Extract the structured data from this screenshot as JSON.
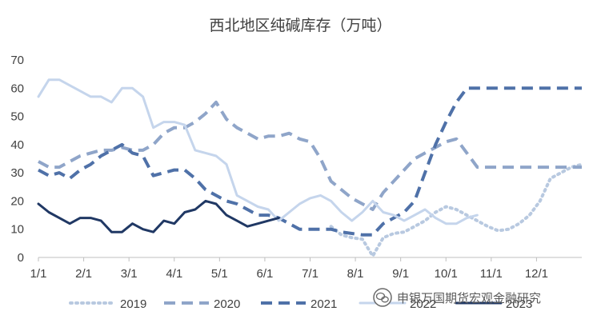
{
  "chart_data": {
    "type": "line",
    "title": "西北地区纯碱库存（万吨）",
    "ylim": [
      0,
      70
    ],
    "y_ticks": [
      0,
      10,
      20,
      30,
      40,
      50,
      60,
      70
    ],
    "x_ticks": [
      "1/1",
      "2/1",
      "3/1",
      "4/1",
      "5/1",
      "6/1",
      "7/1",
      "8/1",
      "9/1",
      "10/1",
      "11/1",
      "12/1"
    ],
    "xlim": [
      1,
      53
    ],
    "grid": false,
    "legend_position": "bottom",
    "series": [
      {
        "name": "2019",
        "color": "#b8c9e0",
        "style": "dotted",
        "x": [
          29,
          30,
          31,
          32,
          33,
          34,
          35,
          36,
          37,
          38,
          39,
          40,
          41,
          42,
          43,
          44,
          45,
          46,
          47,
          48,
          49,
          50,
          51,
          52,
          53
        ],
        "y": [
          11,
          8,
          7,
          6.5,
          0.5,
          7,
          8.5,
          9,
          11,
          13,
          16,
          18,
          17,
          15,
          13,
          11,
          9.5,
          10,
          12,
          15,
          20,
          28,
          30,
          32,
          33
        ]
      },
      {
        "name": "2020",
        "color": "#8fa5c9",
        "style": "dashed",
        "x": [
          1,
          2,
          3,
          4,
          5,
          6,
          7,
          8,
          9,
          10,
          11,
          12,
          13,
          14,
          15,
          16,
          17,
          18,
          19,
          20,
          21,
          22,
          23,
          24,
          25,
          26,
          27,
          28,
          29,
          30,
          31,
          32,
          33,
          34,
          35,
          36,
          37,
          38,
          39,
          40,
          41,
          42,
          43,
          44,
          45,
          46,
          47,
          48,
          49,
          50,
          51,
          52,
          53
        ],
        "y": [
          34,
          32,
          32,
          34,
          36,
          37,
          38,
          38,
          39,
          38,
          38,
          40,
          44,
          46,
          46,
          48,
          51,
          55,
          49,
          46,
          44,
          42,
          43,
          43,
          44,
          42,
          41,
          35,
          27,
          24,
          21,
          19,
          17,
          23,
          27,
          31,
          35,
          37,
          39,
          41,
          42,
          37,
          32,
          32,
          32,
          32,
          32,
          32,
          32,
          32,
          32,
          32,
          32
        ]
      },
      {
        "name": "2021",
        "color": "#4f71a8",
        "style": "dashed",
        "x": [
          1,
          2,
          3,
          4,
          5,
          6,
          7,
          8,
          9,
          10,
          11,
          12,
          13,
          14,
          15,
          16,
          17,
          18,
          19,
          20,
          21,
          22,
          23,
          24,
          25,
          26,
          27,
          28,
          29,
          30,
          31,
          32,
          33,
          34,
          35,
          36,
          37,
          38,
          39,
          40,
          41,
          42,
          43,
          44,
          45,
          46,
          47,
          48,
          49,
          50,
          51,
          52,
          53
        ],
        "y": [
          31,
          29,
          30,
          28,
          31,
          33,
          36,
          38,
          40,
          37,
          36,
          29,
          30,
          31,
          31,
          28,
          24,
          22,
          20,
          19,
          17,
          15,
          15,
          14,
          12,
          10,
          10,
          10,
          10,
          9,
          8.5,
          8,
          8,
          12,
          14,
          16,
          20,
          30,
          40,
          48,
          55,
          60,
          60,
          60,
          60,
          60,
          60,
          60,
          60,
          60,
          60,
          60,
          60
        ]
      },
      {
        "name": "2022",
        "color": "#c5d5ec",
        "style": "solid",
        "x": [
          1,
          2,
          3,
          4,
          5,
          6,
          7,
          8,
          9,
          10,
          11,
          12,
          13,
          14,
          15,
          16,
          17,
          18,
          19,
          20,
          21,
          22,
          23,
          24,
          25,
          26,
          27,
          28,
          29,
          30,
          31,
          32,
          33,
          34,
          35,
          36,
          37,
          38,
          39,
          40,
          41,
          42,
          43
        ],
        "y": [
          57,
          63,
          63,
          61,
          59,
          57,
          57,
          55,
          60,
          60,
          57,
          46,
          48,
          48,
          47,
          38,
          37,
          36,
          33,
          22,
          20,
          18,
          17,
          13,
          16,
          19,
          21,
          22,
          20,
          16,
          13,
          16,
          20,
          16,
          15,
          13,
          15,
          17,
          14,
          12,
          12,
          14,
          15
        ]
      },
      {
        "name": "2023",
        "color": "#203864",
        "style": "solid",
        "x": [
          1,
          2,
          3,
          4,
          5,
          6,
          7,
          8,
          9,
          10,
          11,
          12,
          13,
          14,
          15,
          16,
          17,
          18,
          19,
          20,
          21,
          22,
          23,
          24
        ],
        "y": [
          19,
          16,
          14,
          12,
          14,
          14,
          13,
          9,
          9,
          12,
          10,
          9,
          13,
          12,
          16,
          17,
          20,
          19,
          15,
          13,
          11,
          12,
          13,
          14
        ]
      }
    ]
  },
  "watermark": {
    "text": "申银万国期货宏观金融研究"
  }
}
